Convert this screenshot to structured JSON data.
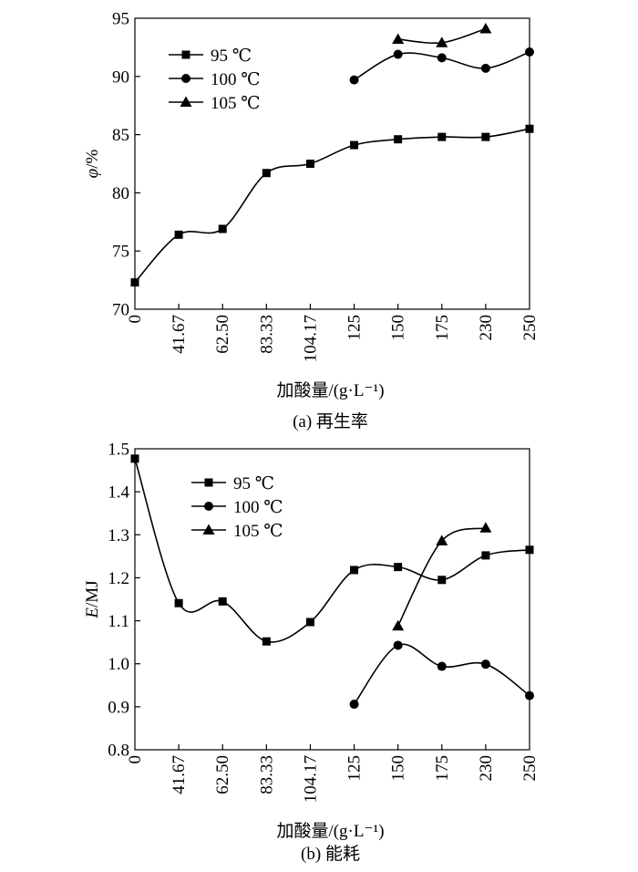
{
  "chart_data": [
    {
      "type": "line",
      "caption": "(a) 再生率",
      "xlabel": "加酸量/(g·L⁻¹)",
      "ylabel_symbol": "φ",
      "ylabel_unit": "/%",
      "categories": [
        "0",
        "41.67",
        "62.50",
        "83.33",
        "104.17",
        "125",
        "150",
        "175",
        "230",
        "250"
      ],
      "ylim": [
        70,
        95
      ],
      "yticks": [
        "70",
        "75",
        "80",
        "85",
        "90",
        "95"
      ],
      "legend_position": "top-left",
      "grid": false,
      "series": [
        {
          "name": "95 ℃",
          "marker": "square",
          "values": [
            72.3,
            76.4,
            76.9,
            81.7,
            82.5,
            84.1,
            84.6,
            84.8,
            84.8,
            85.5
          ]
        },
        {
          "name": "100 ℃",
          "marker": "circle",
          "values": [
            null,
            null,
            null,
            null,
            null,
            89.7,
            91.9,
            91.6,
            90.7,
            92.1
          ]
        },
        {
          "name": "105 ℃",
          "marker": "triangle",
          "values": [
            null,
            null,
            null,
            null,
            null,
            null,
            93.2,
            92.9,
            94.1,
            null
          ]
        }
      ]
    },
    {
      "type": "line",
      "caption": "(b) 能耗",
      "xlabel": "加酸量/(g·L⁻¹)",
      "ylabel_symbol": "E",
      "ylabel_unit": "/MJ",
      "categories": [
        "0",
        "41.67",
        "62.50",
        "83.33",
        "104.17",
        "125",
        "150",
        "175",
        "230",
        "250"
      ],
      "ylim": [
        0.8,
        1.5
      ],
      "yticks": [
        "0.8",
        "0.9",
        "1.0",
        "1.1",
        "1.2",
        "1.3",
        "1.4",
        "1.5"
      ],
      "legend_position": "top-left",
      "grid": false,
      "series": [
        {
          "name": "95 ℃",
          "marker": "square",
          "values": [
            1.477,
            1.141,
            1.145,
            1.052,
            1.097,
            1.218,
            1.225,
            1.195,
            1.252,
            1.265
          ]
        },
        {
          "name": "100 ℃",
          "marker": "circle",
          "values": [
            null,
            null,
            null,
            null,
            null,
            0.906,
            1.043,
            0.994,
            0.999,
            0.926
          ]
        },
        {
          "name": "105 ℃",
          "marker": "triangle",
          "values": [
            null,
            null,
            null,
            null,
            null,
            null,
            1.088,
            1.286,
            1.316,
            null
          ]
        }
      ]
    }
  ]
}
